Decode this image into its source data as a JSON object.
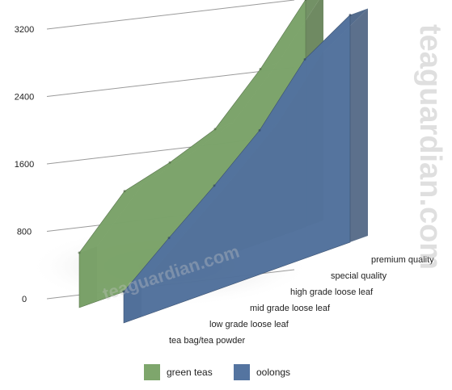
{
  "chart_data": {
    "type": "area",
    "style": "3d",
    "ylim": [
      0,
      3200
    ],
    "yticks": [
      "3200",
      "2400",
      "1600",
      "800",
      "0"
    ],
    "categories": [
      "tea bag/tea powder",
      "low grade loose leaf",
      "mid grade loose leaf",
      "high grade loose leaf",
      "special quality",
      "premium quality"
    ],
    "series": [
      {
        "name": "green teas",
        "color": "#7ea66c",
        "values": [
          700,
          1280,
          1440,
          1660,
          2220,
          2900
        ]
      },
      {
        "name": "oolongs",
        "color": "#5474a0",
        "values": [
          400,
          880,
          1340,
          1840,
          2540,
          2900
        ]
      }
    ],
    "legend_position": "bottom",
    "grid": true
  },
  "legend": {
    "items": [
      {
        "label": "green teas",
        "color": "#7ea66c"
      },
      {
        "label": "oolongs",
        "color": "#5474a0"
      }
    ]
  },
  "watermark": "teaguardian.com"
}
